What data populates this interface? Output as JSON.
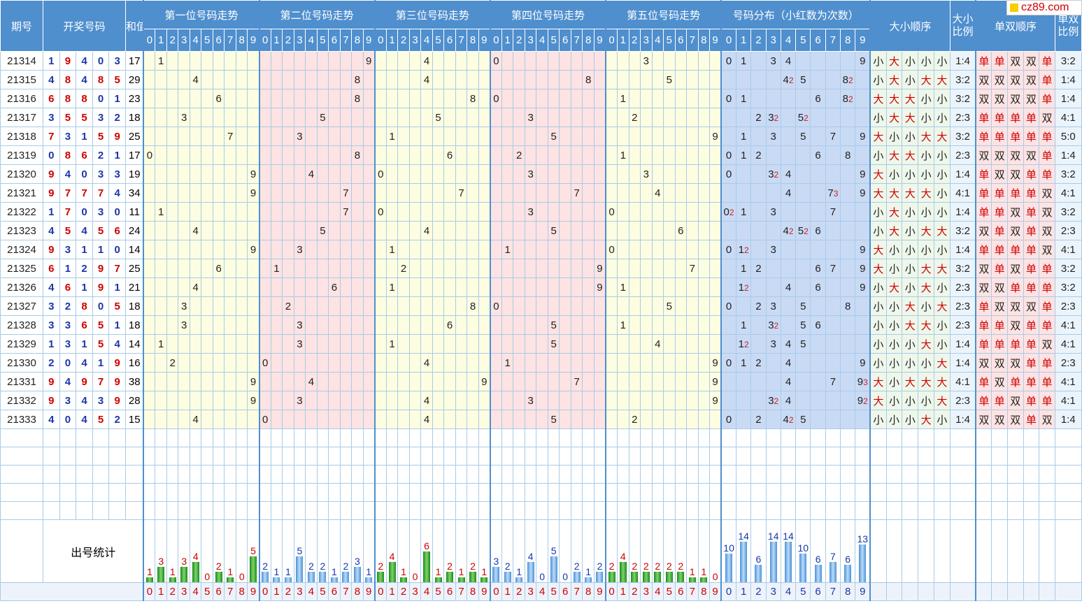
{
  "header": {
    "issue": "期号",
    "draw": "开奖号码",
    "sum": "和值",
    "pos": [
      "第一位号码走势",
      "第二位号码走势",
      "第三位号码走势",
      "第四位号码走势",
      "第五位号码走势"
    ],
    "dist": "号码分布（小红数为次数）",
    "size_order": "大小顺序",
    "size_ratio": "大小比例",
    "oe_order": "单双顺序",
    "oe_ratio": "单双比例",
    "digits": [
      "0",
      "1",
      "2",
      "3",
      "4",
      "5",
      "6",
      "7",
      "8",
      "9"
    ]
  },
  "rows": [
    {
      "issue": "21314",
      "nums": [
        1,
        9,
        4,
        0,
        3
      ],
      "sum": "17",
      "size": [
        "小",
        "大",
        "小",
        "小",
        "小"
      ],
      "sr": "1:4",
      "oe": [
        "单",
        "单",
        "双",
        "双",
        "单"
      ],
      "or": "3:2"
    },
    {
      "issue": "21315",
      "nums": [
        4,
        8,
        4,
        8,
        5
      ],
      "sum": "29",
      "size": [
        "小",
        "大",
        "小",
        "大",
        "大"
      ],
      "sr": "3:2",
      "oe": [
        "双",
        "双",
        "双",
        "双",
        "单"
      ],
      "or": "1:4"
    },
    {
      "issue": "21316",
      "nums": [
        6,
        8,
        8,
        0,
        1
      ],
      "sum": "23",
      "size": [
        "大",
        "大",
        "大",
        "小",
        "小"
      ],
      "sr": "3:2",
      "oe": [
        "双",
        "双",
        "双",
        "双",
        "单"
      ],
      "or": "1:4"
    },
    {
      "issue": "21317",
      "nums": [
        3,
        5,
        5,
        3,
        2
      ],
      "sum": "18",
      "size": [
        "小",
        "大",
        "大",
        "小",
        "小"
      ],
      "sr": "2:3",
      "oe": [
        "单",
        "单",
        "单",
        "单",
        "双"
      ],
      "or": "4:1"
    },
    {
      "issue": "21318",
      "nums": [
        7,
        3,
        1,
        5,
        9
      ],
      "sum": "25",
      "size": [
        "大",
        "小",
        "小",
        "大",
        "大"
      ],
      "sr": "3:2",
      "oe": [
        "单",
        "单",
        "单",
        "单",
        "单"
      ],
      "or": "5:0"
    },
    {
      "issue": "21319",
      "nums": [
        0,
        8,
        6,
        2,
        1
      ],
      "sum": "17",
      "size": [
        "小",
        "大",
        "大",
        "小",
        "小"
      ],
      "sr": "2:3",
      "oe": [
        "双",
        "双",
        "双",
        "双",
        "单"
      ],
      "or": "1:4"
    },
    {
      "issue": "21320",
      "nums": [
        9,
        4,
        0,
        3,
        3
      ],
      "sum": "19",
      "size": [
        "大",
        "小",
        "小",
        "小",
        "小"
      ],
      "sr": "1:4",
      "oe": [
        "单",
        "双",
        "双",
        "单",
        "单"
      ],
      "or": "3:2"
    },
    {
      "issue": "21321",
      "nums": [
        9,
        7,
        7,
        7,
        4
      ],
      "sum": "34",
      "size": [
        "大",
        "大",
        "大",
        "大",
        "小"
      ],
      "sr": "4:1",
      "oe": [
        "单",
        "单",
        "单",
        "单",
        "双"
      ],
      "or": "4:1"
    },
    {
      "issue": "21322",
      "nums": [
        1,
        7,
        0,
        3,
        0
      ],
      "sum": "11",
      "size": [
        "小",
        "大",
        "小",
        "小",
        "小"
      ],
      "sr": "1:4",
      "oe": [
        "单",
        "单",
        "双",
        "单",
        "双"
      ],
      "or": "3:2"
    },
    {
      "issue": "21323",
      "nums": [
        4,
        5,
        4,
        5,
        6
      ],
      "sum": "24",
      "size": [
        "小",
        "大",
        "小",
        "大",
        "大"
      ],
      "sr": "3:2",
      "oe": [
        "双",
        "单",
        "双",
        "单",
        "双"
      ],
      "or": "2:3"
    },
    {
      "issue": "21324",
      "nums": [
        9,
        3,
        1,
        1,
        0
      ],
      "sum": "14",
      "size": [
        "大",
        "小",
        "小",
        "小",
        "小"
      ],
      "sr": "1:4",
      "oe": [
        "单",
        "单",
        "单",
        "单",
        "双"
      ],
      "or": "4:1"
    },
    {
      "issue": "21325",
      "nums": [
        6,
        1,
        2,
        9,
        7
      ],
      "sum": "25",
      "size": [
        "大",
        "小",
        "小",
        "大",
        "大"
      ],
      "sr": "3:2",
      "oe": [
        "双",
        "单",
        "双",
        "单",
        "单"
      ],
      "or": "3:2"
    },
    {
      "issue": "21326",
      "nums": [
        4,
        6,
        1,
        9,
        1
      ],
      "sum": "21",
      "size": [
        "小",
        "大",
        "小",
        "大",
        "小"
      ],
      "sr": "2:3",
      "oe": [
        "双",
        "双",
        "单",
        "单",
        "单"
      ],
      "or": "3:2"
    },
    {
      "issue": "21327",
      "nums": [
        3,
        2,
        8,
        0,
        5
      ],
      "sum": "18",
      "size": [
        "小",
        "小",
        "大",
        "小",
        "大"
      ],
      "sr": "2:3",
      "oe": [
        "单",
        "双",
        "双",
        "双",
        "单"
      ],
      "or": "2:3"
    },
    {
      "issue": "21328",
      "nums": [
        3,
        3,
        6,
        5,
        1
      ],
      "sum": "18",
      "size": [
        "小",
        "小",
        "大",
        "大",
        "小"
      ],
      "sr": "2:3",
      "oe": [
        "单",
        "单",
        "双",
        "单",
        "单"
      ],
      "or": "4:1"
    },
    {
      "issue": "21329",
      "nums": [
        1,
        3,
        1,
        5,
        4
      ],
      "sum": "14",
      "size": [
        "小",
        "小",
        "小",
        "大",
        "小"
      ],
      "sr": "1:4",
      "oe": [
        "单",
        "单",
        "单",
        "单",
        "双"
      ],
      "or": "4:1"
    },
    {
      "issue": "21330",
      "nums": [
        2,
        0,
        4,
        1,
        9
      ],
      "sum": "16",
      "size": [
        "小",
        "小",
        "小",
        "小",
        "大"
      ],
      "sr": "1:4",
      "oe": [
        "双",
        "双",
        "双",
        "单",
        "单"
      ],
      "or": "2:3"
    },
    {
      "issue": "21331",
      "nums": [
        9,
        4,
        9,
        7,
        9
      ],
      "sum": "38",
      "size": [
        "大",
        "小",
        "大",
        "大",
        "大"
      ],
      "sr": "4:1",
      "oe": [
        "单",
        "双",
        "单",
        "单",
        "单"
      ],
      "or": "4:1"
    },
    {
      "issue": "21332",
      "nums": [
        9,
        3,
        4,
        3,
        9
      ],
      "sum": "28",
      "size": [
        "大",
        "小",
        "小",
        "小",
        "大"
      ],
      "sr": "2:3",
      "oe": [
        "单",
        "单",
        "双",
        "单",
        "单"
      ],
      "or": "4:1"
    },
    {
      "issue": "21333",
      "nums": [
        4,
        0,
        4,
        5,
        2
      ],
      "sum": "15",
      "size": [
        "小",
        "小",
        "小",
        "大",
        "小"
      ],
      "sr": "1:4",
      "oe": [
        "双",
        "双",
        "双",
        "单",
        "双"
      ],
      "or": "1:4"
    }
  ],
  "stats": {
    "label": "出号统计",
    "pos": [
      [
        1,
        3,
        1,
        3,
        4,
        0,
        2,
        1,
        0,
        5
      ],
      [
        2,
        1,
        1,
        5,
        2,
        2,
        1,
        2,
        3,
        1
      ],
      [
        2,
        4,
        1,
        0,
        6,
        1,
        2,
        1,
        2,
        1
      ],
      [
        3,
        2,
        1,
        4,
        0,
        5,
        0,
        2,
        1,
        2
      ],
      [
        2,
        4,
        2,
        2,
        2,
        2,
        2,
        1,
        1,
        0
      ]
    ],
    "pos_last": 4,
    "dist": [
      10,
      14,
      6,
      14,
      14,
      10,
      6,
      7,
      6,
      13
    ]
  },
  "logo": "cz89.com",
  "colors": {
    "header": "#4f8fce",
    "big": "#cc0000",
    "small": "#1a37a8"
  }
}
